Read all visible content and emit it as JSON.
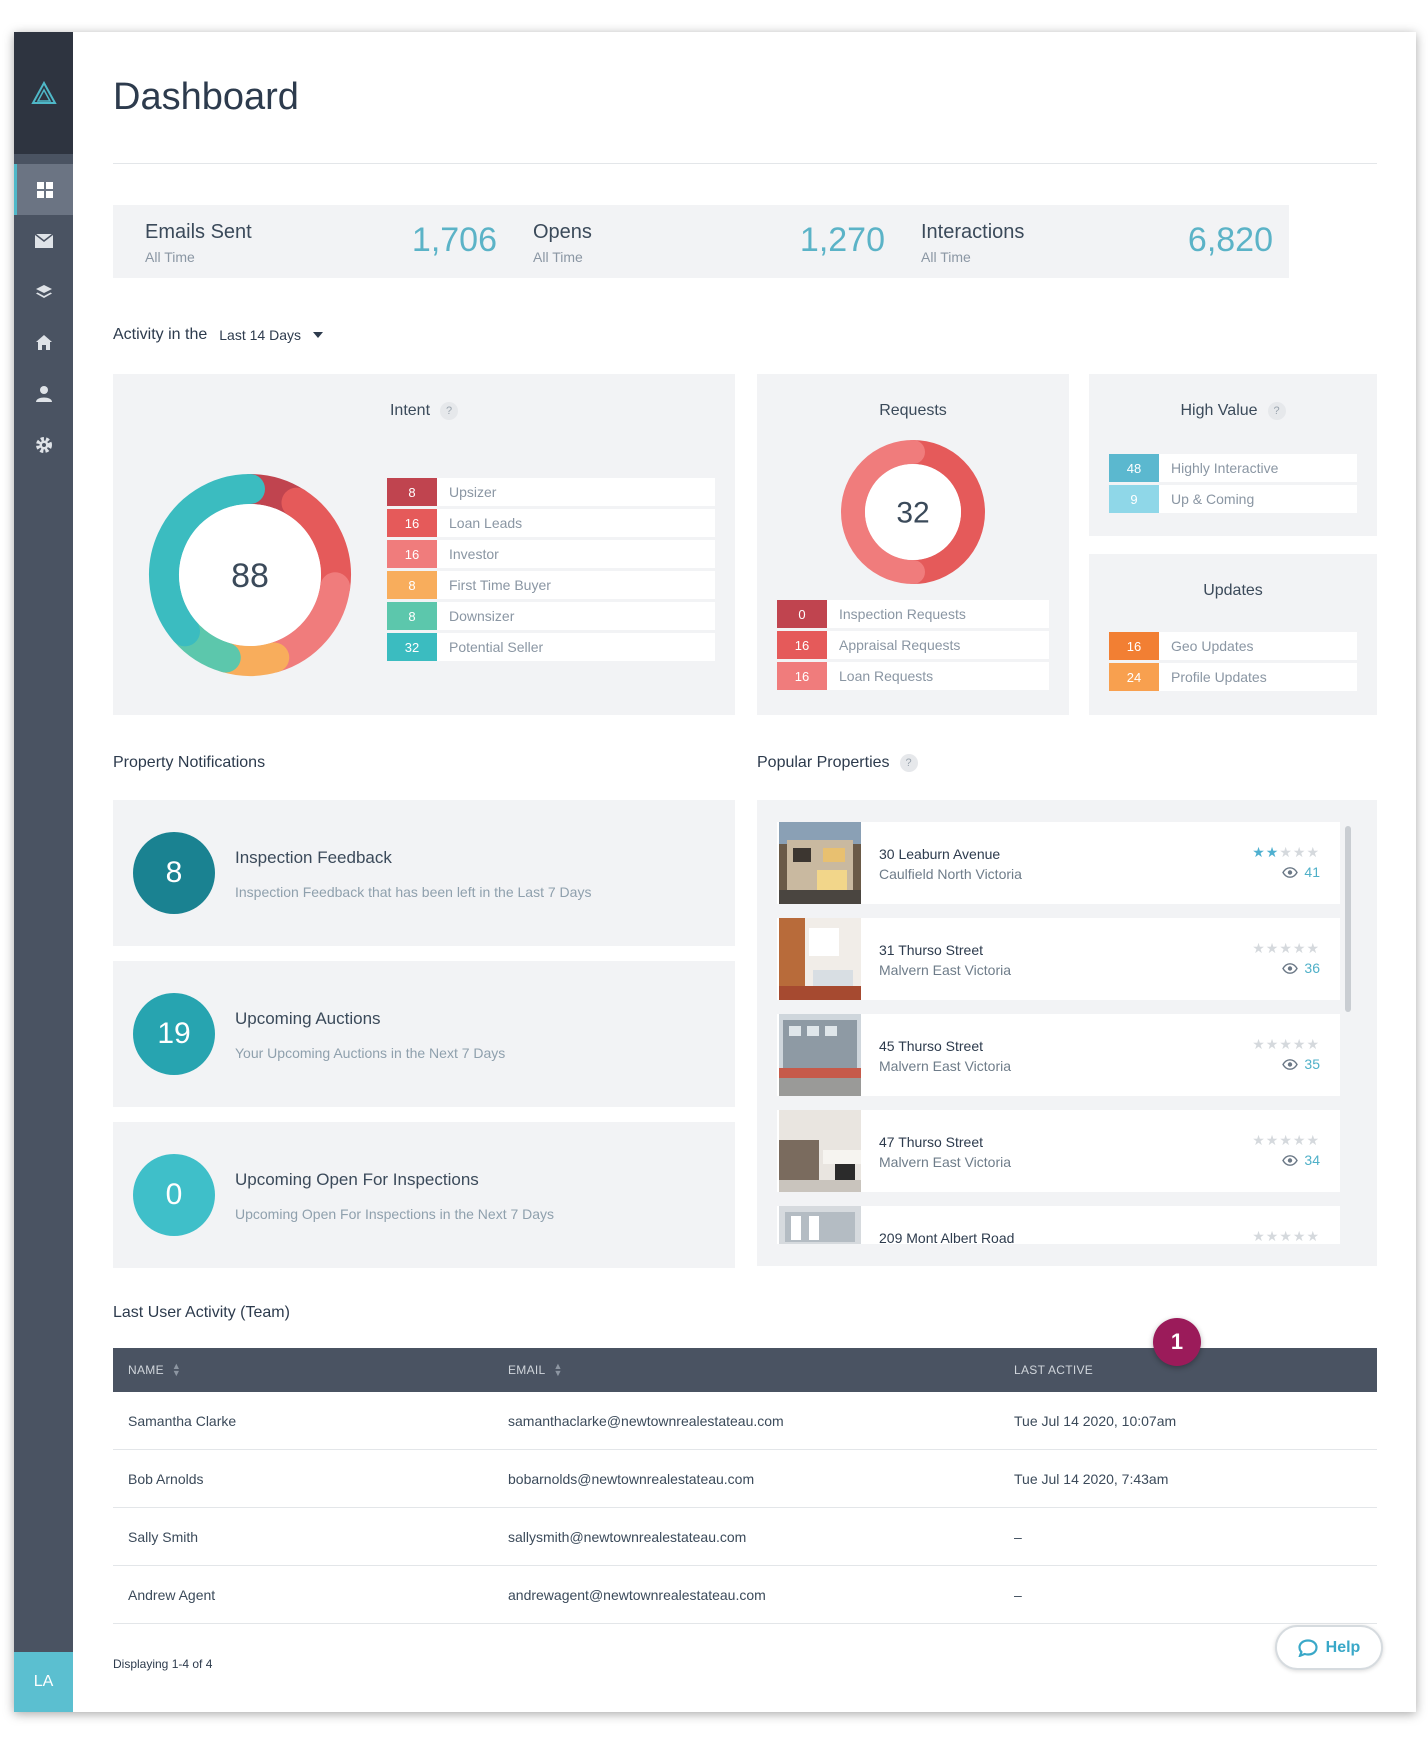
{
  "page": {
    "title": "Dashboard"
  },
  "sidebar": {
    "items": [
      {
        "name": "dashboard",
        "icon": "grid-icon",
        "active": true
      },
      {
        "name": "emails",
        "icon": "envelope-icon"
      },
      {
        "name": "layers",
        "icon": "layers-icon"
      },
      {
        "name": "properties",
        "icon": "home-icon"
      },
      {
        "name": "contacts",
        "icon": "user-icon"
      },
      {
        "name": "settings",
        "icon": "gear-icon"
      }
    ],
    "avatar_initials": "LA"
  },
  "stats": [
    {
      "label": "Emails Sent",
      "sub": "All Time",
      "value": "1,706"
    },
    {
      "label": "Opens",
      "sub": "All Time",
      "value": "1,270"
    },
    {
      "label": "Interactions",
      "sub": "All Time",
      "value": "6,820"
    }
  ],
  "activity": {
    "prefix": "Activity in the",
    "range": "Last 14 Days"
  },
  "intent": {
    "title": "Intent",
    "help": "?",
    "total": "88",
    "items": [
      {
        "value": "8",
        "label": "Upsizer",
        "color": "#c0444f"
      },
      {
        "value": "16",
        "label": "Loan Leads",
        "color": "#e55a5a"
      },
      {
        "value": "16",
        "label": "Investor",
        "color": "#f07c7c"
      },
      {
        "value": "8",
        "label": "First Time Buyer",
        "color": "#f8ad5c"
      },
      {
        "value": "8",
        "label": "Downsizer",
        "color": "#5cc7ac"
      },
      {
        "value": "32",
        "label": "Potential Seller",
        "color": "#3bbcc0"
      }
    ]
  },
  "requests": {
    "title": "Requests",
    "total": "32",
    "items": [
      {
        "value": "0",
        "label": "Inspection Requests",
        "color": "#c0444f"
      },
      {
        "value": "16",
        "label": "Appraisal Requests",
        "color": "#e55a5a"
      },
      {
        "value": "16",
        "label": "Loan Requests",
        "color": "#f07c7c"
      }
    ]
  },
  "high_value": {
    "title": "High Value",
    "help": "?",
    "items": [
      {
        "value": "48",
        "label": "Highly Interactive",
        "color": "#5bb8cf"
      },
      {
        "value": "9",
        "label": "Up & Coming",
        "color": "#8fd7e8"
      }
    ]
  },
  "updates": {
    "title": "Updates",
    "items": [
      {
        "value": "16",
        "label": "Geo Updates",
        "color": "#f27f33"
      },
      {
        "value": "24",
        "label": "Profile Updates",
        "color": "#f8a04f"
      }
    ]
  },
  "property_notifications": {
    "heading": "Property Notifications",
    "items": [
      {
        "count": "8",
        "title": "Inspection Feedback",
        "sub": "Inspection Feedback that has been left in the Last 7 Days",
        "color": "#1a8291"
      },
      {
        "count": "19",
        "title": "Upcoming Auctions",
        "sub": "Your Upcoming Auctions in the Next 7 Days",
        "color": "#27a4b0"
      },
      {
        "count": "0",
        "title": "Upcoming Open For Inspections",
        "sub": "Upcoming Open For Inspections in the Next 7 Days",
        "color": "#3fbfc9"
      }
    ]
  },
  "popular_properties": {
    "heading": "Popular Properties",
    "help": "?",
    "items": [
      {
        "address": "30 Leaburn Avenue",
        "suburb": "Caulfield North Victoria",
        "rating": 2,
        "views": "41"
      },
      {
        "address": "31 Thurso Street",
        "suburb": "Malvern East Victoria",
        "rating": 0,
        "views": "36"
      },
      {
        "address": "45 Thurso Street",
        "suburb": "Malvern East Victoria",
        "rating": 0,
        "views": "35"
      },
      {
        "address": "47 Thurso Street",
        "suburb": "Malvern East Victoria",
        "rating": 0,
        "views": "34"
      },
      {
        "address": "209 Mont Albert Road",
        "suburb": "",
        "rating": 0,
        "views": ""
      }
    ]
  },
  "user_activity": {
    "heading": "Last User Activity (Team)",
    "columns": {
      "name": "NAME",
      "email": "EMAIL",
      "last_active": "LAST ACTIVE"
    },
    "rows": [
      {
        "name": "Samantha Clarke",
        "email": "samanthaclarke@newtownrealestateau.com",
        "last_active": "Tue Jul 14 2020, 10:07am"
      },
      {
        "name": "Bob Arnolds",
        "email": "bobarnolds@newtownrealestateau.com",
        "last_active": "Tue Jul 14  2020, 7:43am"
      },
      {
        "name": "Sally Smith",
        "email": "sallysmith@newtownrealestateau.com",
        "last_active": "–"
      },
      {
        "name": "Andrew Agent",
        "email": "andrewagent@newtownrealestateau.com",
        "last_active": "–"
      }
    ],
    "footer": "Displaying 1-4 of 4"
  },
  "annotation_badge": "1",
  "help_button": "Help"
}
